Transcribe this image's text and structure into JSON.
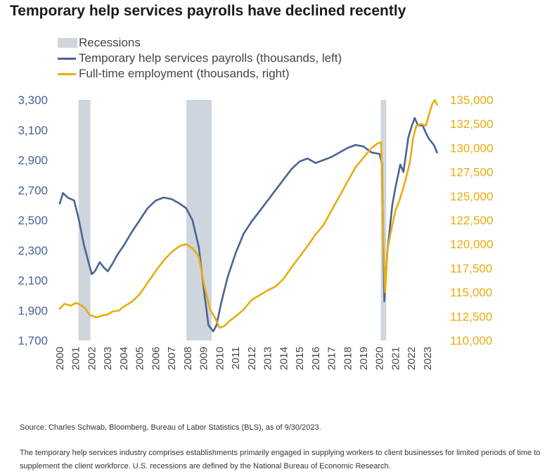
{
  "title": "Temporary help services payrolls have declined recently",
  "source": "Source: Charles Schwab, Bloomberg, Bureau of Labor Statistics (BLS), as of 9/30/2023.",
  "note": "The temporary help services industry comprises establishments primarily engaged in supplying workers to client businesses for limited periods of time to supplement the client workforce. U.S. recessions are defined by the National Bureau of Economic Research.",
  "colors": {
    "temp": "#4a6395",
    "fulltime": "#e6ad0d",
    "recession": "#cfd5dd"
  },
  "chart_data": {
    "type": "line",
    "title": "Temporary help services payrolls have declined recently",
    "legend": {
      "placement": "top-left",
      "entries": [
        "Recessions",
        "Temporary help services payrolls (thousands, left)",
        "Full-time employment (thousands, right)"
      ]
    },
    "x_ticks": [
      "2000",
      "2001",
      "2002",
      "2003",
      "2004",
      "2005",
      "2006",
      "2007",
      "2008",
      "2009",
      "2010",
      "2011",
      "2012",
      "2013",
      "2014",
      "2015",
      "2016",
      "2017",
      "2018",
      "2019",
      "2020",
      "2021",
      "2022",
      "2023"
    ],
    "xlim": [
      2000,
      2023.75
    ],
    "y_left": {
      "ylim": [
        1700,
        3300
      ],
      "ticks": [
        "1,700",
        "1,900",
        "2,100",
        "2,300",
        "2,500",
        "2,700",
        "2,900",
        "3,100",
        "3,300"
      ],
      "tick_values": [
        1700,
        1900,
        2100,
        2300,
        2500,
        2700,
        2900,
        3100,
        3300
      ]
    },
    "y_right": {
      "ylim": [
        110000,
        135000
      ],
      "ticks": [
        "110,000",
        "112,500",
        "115,000",
        "117,500",
        "120,000",
        "122,500",
        "125,000",
        "127,500",
        "130,000",
        "132,500",
        "135,000"
      ],
      "tick_values": [
        110000,
        112500,
        115000,
        117500,
        120000,
        122500,
        125000,
        127500,
        130000,
        132500,
        135000
      ]
    },
    "recessions": [
      [
        2001.17,
        2001.92
      ],
      [
        2007.92,
        2009.5
      ],
      [
        2020.08,
        2020.42
      ]
    ],
    "series": [
      {
        "name": "Temporary help services payrolls (thousands, left)",
        "axis": "left",
        "color": "#4a6395",
        "points": [
          [
            2000.0,
            2610
          ],
          [
            2000.2,
            2680
          ],
          [
            2000.5,
            2650
          ],
          [
            2000.9,
            2630
          ],
          [
            2001.2,
            2500
          ],
          [
            2001.5,
            2340
          ],
          [
            2001.8,
            2220
          ],
          [
            2002.0,
            2140
          ],
          [
            2002.2,
            2160
          ],
          [
            2002.5,
            2220
          ],
          [
            2002.8,
            2180
          ],
          [
            2003.0,
            2160
          ],
          [
            2003.3,
            2210
          ],
          [
            2003.6,
            2270
          ],
          [
            2004.0,
            2330
          ],
          [
            2004.5,
            2420
          ],
          [
            2005.0,
            2500
          ],
          [
            2005.5,
            2580
          ],
          [
            2006.0,
            2630
          ],
          [
            2006.5,
            2650
          ],
          [
            2007.0,
            2640
          ],
          [
            2007.5,
            2610
          ],
          [
            2007.9,
            2580
          ],
          [
            2008.3,
            2500
          ],
          [
            2008.7,
            2320
          ],
          [
            2009.0,
            2050
          ],
          [
            2009.3,
            1800
          ],
          [
            2009.6,
            1760
          ],
          [
            2009.8,
            1800
          ],
          [
            2010.1,
            1950
          ],
          [
            2010.5,
            2120
          ],
          [
            2011.0,
            2280
          ],
          [
            2011.5,
            2410
          ],
          [
            2012.0,
            2490
          ],
          [
            2012.5,
            2560
          ],
          [
            2013.0,
            2630
          ],
          [
            2013.5,
            2700
          ],
          [
            2014.0,
            2770
          ],
          [
            2014.5,
            2840
          ],
          [
            2015.0,
            2890
          ],
          [
            2015.5,
            2910
          ],
          [
            2016.0,
            2880
          ],
          [
            2016.5,
            2900
          ],
          [
            2017.0,
            2920
          ],
          [
            2017.5,
            2950
          ],
          [
            2018.0,
            2980
          ],
          [
            2018.5,
            3000
          ],
          [
            2019.0,
            2990
          ],
          [
            2019.5,
            2950
          ],
          [
            2020.0,
            2940
          ],
          [
            2020.15,
            2880
          ],
          [
            2020.3,
            1960
          ],
          [
            2020.5,
            2300
          ],
          [
            2020.8,
            2600
          ],
          [
            2021.0,
            2720
          ],
          [
            2021.3,
            2870
          ],
          [
            2021.5,
            2820
          ],
          [
            2021.8,
            3050
          ],
          [
            2022.0,
            3120
          ],
          [
            2022.2,
            3180
          ],
          [
            2022.4,
            3130
          ],
          [
            2022.7,
            3130
          ],
          [
            2022.9,
            3080
          ],
          [
            2023.1,
            3040
          ],
          [
            2023.4,
            3000
          ],
          [
            2023.6,
            2950
          ]
        ]
      },
      {
        "name": "Full-time employment (thousands, right)",
        "axis": "right",
        "color": "#e6ad0d",
        "points": [
          [
            2000.0,
            113300
          ],
          [
            2000.3,
            113800
          ],
          [
            2000.7,
            113600
          ],
          [
            2001.0,
            113900
          ],
          [
            2001.3,
            113700
          ],
          [
            2001.6,
            113300
          ],
          [
            2001.9,
            112600
          ],
          [
            2002.3,
            112400
          ],
          [
            2002.7,
            112600
          ],
          [
            2003.0,
            112700
          ],
          [
            2003.3,
            113000
          ],
          [
            2003.7,
            113100
          ],
          [
            2004.0,
            113500
          ],
          [
            2004.5,
            114000
          ],
          [
            2005.0,
            114800
          ],
          [
            2005.5,
            116000
          ],
          [
            2006.0,
            117200
          ],
          [
            2006.5,
            118300
          ],
          [
            2007.0,
            119200
          ],
          [
            2007.5,
            119800
          ],
          [
            2007.9,
            120000
          ],
          [
            2008.3,
            119600
          ],
          [
            2008.7,
            118700
          ],
          [
            2009.0,
            116000
          ],
          [
            2009.4,
            113200
          ],
          [
            2009.7,
            112400
          ],
          [
            2010.0,
            111300
          ],
          [
            2010.3,
            111500
          ],
          [
            2010.6,
            112000
          ],
          [
            2011.0,
            112500
          ],
          [
            2011.5,
            113200
          ],
          [
            2012.0,
            114200
          ],
          [
            2012.5,
            114700
          ],
          [
            2013.0,
            115200
          ],
          [
            2013.5,
            115600
          ],
          [
            2014.0,
            116400
          ],
          [
            2014.5,
            117600
          ],
          [
            2015.0,
            118700
          ],
          [
            2015.5,
            119800
          ],
          [
            2016.0,
            121000
          ],
          [
            2016.5,
            122000
          ],
          [
            2017.0,
            123500
          ],
          [
            2017.5,
            125000
          ],
          [
            2018.0,
            126500
          ],
          [
            2018.5,
            128000
          ],
          [
            2019.0,
            129000
          ],
          [
            2019.5,
            130000
          ],
          [
            2019.9,
            130500
          ],
          [
            2020.1,
            130600
          ],
          [
            2020.25,
            120000
          ],
          [
            2020.35,
            115000
          ],
          [
            2020.5,
            119500
          ],
          [
            2020.8,
            122000
          ],
          [
            2021.0,
            123500
          ],
          [
            2021.3,
            124800
          ],
          [
            2021.6,
            126500
          ],
          [
            2021.9,
            128500
          ],
          [
            2022.1,
            131000
          ],
          [
            2022.3,
            132300
          ],
          [
            2022.6,
            132500
          ],
          [
            2022.9,
            132300
          ],
          [
            2023.1,
            133500
          ],
          [
            2023.3,
            134600
          ],
          [
            2023.45,
            135000
          ],
          [
            2023.6,
            134500
          ]
        ]
      }
    ]
  }
}
